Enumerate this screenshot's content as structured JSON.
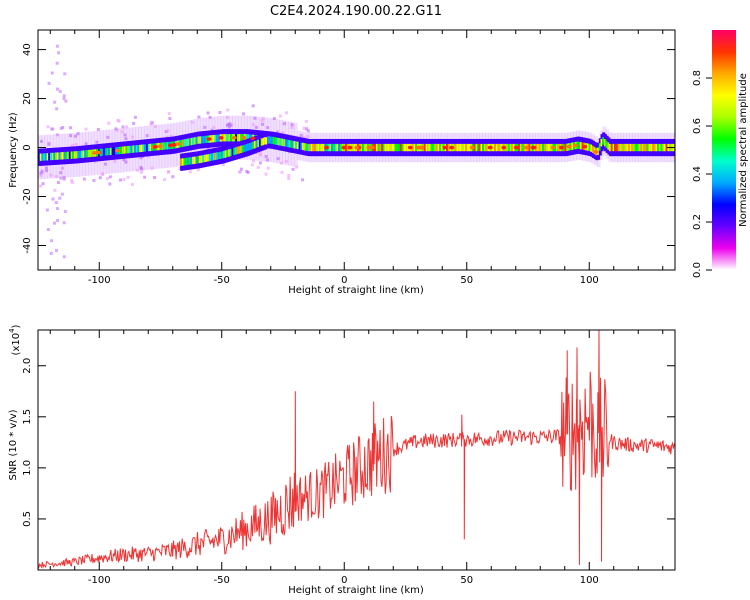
{
  "figure": {
    "title": "C2E4.2024.190.00.22.G11"
  },
  "chart_data": [
    {
      "type": "heatmap",
      "xlabel": "Height of straight line (km)",
      "ylabel": "Frequency (Hz)",
      "xlim": [
        -125,
        135
      ],
      "ylim": [
        -50,
        48
      ],
      "xticks": [
        -100,
        -50,
        0,
        50,
        100
      ],
      "yticks": [
        -40,
        -20,
        0,
        20,
        40
      ],
      "colorbar": {
        "label": "Normalized spectral amplitude",
        "range": [
          0,
          1
        ],
        "ticks": [
          "0.0",
          "0.2",
          "0.4",
          "0.6",
          "0.8"
        ],
        "tick_values": [
          0.0,
          0.2,
          0.4,
          0.6,
          0.8
        ],
        "colors": [
          "#ffffff",
          "#ee00ee",
          "#6600ff",
          "#0000ff",
          "#00aaff",
          "#00ffcc",
          "#00ff00",
          "#aaff00",
          "#ffff00",
          "#ffaa00",
          "#ff3300",
          "#ff0066"
        ]
      },
      "tracks": [
        {
          "x": [
            -125,
            -110,
            -100,
            -90,
            -80,
            -70,
            -60,
            -50,
            -40,
            -30,
            -20,
            -15,
            -10,
            0,
            10,
            20,
            40,
            60,
            80,
            90,
            95,
            100,
            103,
            105,
            108,
            115,
            135
          ],
          "y": [
            -4,
            -3,
            -2,
            -1,
            0,
            1,
            3,
            4,
            4,
            3,
            1,
            0,
            0,
            0,
            0,
            0,
            0,
            0,
            0,
            0,
            1,
            0,
            -2,
            3,
            0,
            0,
            0
          ]
        },
        {
          "x": [
            -67,
            -60,
            -50,
            -40,
            -32
          ],
          "y": [
            -6,
            -5,
            -3,
            0,
            3
          ]
        }
      ]
    },
    {
      "type": "line",
      "xlabel": "Height of straight line (km)",
      "ylabel": "SNR (10 * v/v)",
      "multiplier": "(x10",
      "multiplier_exp": "4",
      "xlim": [
        -125,
        135
      ],
      "ylim": [
        0,
        23500
      ],
      "xticks": [
        -100,
        -50,
        0,
        50,
        100
      ],
      "yticks": [
        5000,
        10000,
        15000,
        20000
      ],
      "ytick_labels": [
        "0.5",
        "1.0",
        "1.5",
        "2.0"
      ],
      "series": [
        {
          "color": "#ee3333",
          "x": [
            -125,
            -110,
            -100,
            -90,
            -80,
            -70,
            -60,
            -50,
            -40,
            -30,
            -20,
            -10,
            0,
            10,
            20,
            30,
            40,
            50,
            60,
            70,
            80,
            90,
            95,
            100,
            105,
            108,
            110,
            115,
            120,
            125,
            130,
            135
          ],
          "y": [
            500,
            800,
            1200,
            1500,
            1600,
            1900,
            2500,
            3000,
            4000,
            5000,
            7000,
            7500,
            9000,
            10500,
            11800,
            12600,
            12700,
            12800,
            12900,
            13000,
            13000,
            13100,
            14000,
            15000,
            13000,
            12800,
            12500,
            12300,
            12200,
            12200,
            12100,
            12000
          ]
        }
      ],
      "spikes": [
        {
          "x": -20,
          "y": 17500
        },
        {
          "x": 12,
          "y": 16500
        },
        {
          "x": 48,
          "y": 15200
        },
        {
          "x": 49,
          "y": 3000
        },
        {
          "x": 91,
          "y": 21500
        },
        {
          "x": 95,
          "y": 21800
        },
        {
          "x": 96,
          "y": 500
        },
        {
          "x": 104,
          "y": 23500
        },
        {
          "x": 105,
          "y": 800
        }
      ]
    }
  ]
}
